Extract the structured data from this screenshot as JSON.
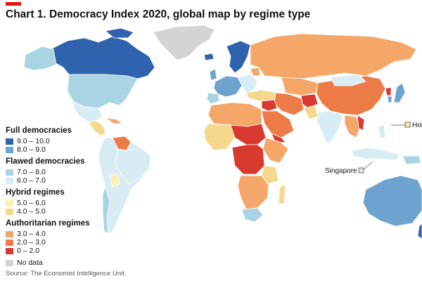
{
  "header": {
    "title": "Chart 1. Democracy Index 2020, global map by regime type"
  },
  "legend": {
    "groups": [
      {
        "title": "Full democracies",
        "items": [
          {
            "label": "9.0 – 10.0",
            "color": "#2f63ad"
          },
          {
            "label": "8.0 – 9.0",
            "color": "#6fa3cf"
          }
        ]
      },
      {
        "title": "Flawed democracies",
        "items": [
          {
            "label": "7.0 – 8.0",
            "color": "#a9d4e4"
          },
          {
            "label": "6.0 – 7.0",
            "color": "#d8ecf3"
          }
        ]
      },
      {
        "title": "Hybrid regimes",
        "items": [
          {
            "label": "5.0 – 6.0",
            "color": "#f5f0b4"
          },
          {
            "label": "4.0 – 5.0",
            "color": "#f5d88c"
          }
        ]
      },
      {
        "title": "Authoritarian regimes",
        "items": [
          {
            "label": "3.0 – 4.0",
            "color": "#f4a769"
          },
          {
            "label": "2.0 – 3.0",
            "color": "#ec7b47"
          },
          {
            "label": "0 – 2.0",
            "color": "#d83a30"
          }
        ]
      }
    ],
    "no_data": {
      "label": "No data",
      "color": "#d4d4d4"
    }
  },
  "callouts": {
    "hong_kong": "Hong",
    "singapore": "Singapore"
  },
  "footer": {
    "source": "Source: The Economist Intelligence Unit."
  },
  "colors": {
    "full_9_10": "#2f63ad",
    "full_8_9": "#6fa3cf",
    "flawed_7_8": "#a9d4e4",
    "flawed_6_7": "#d8ecf3",
    "hybrid_5_6": "#f5f0b4",
    "hybrid_4_5": "#f5d88c",
    "auth_3_4": "#f4a769",
    "auth_2_3": "#ec7b47",
    "auth_0_2": "#d83a30",
    "no_data": "#d4d4d4",
    "border": "#ffffff",
    "brand": "#e3120b"
  }
}
